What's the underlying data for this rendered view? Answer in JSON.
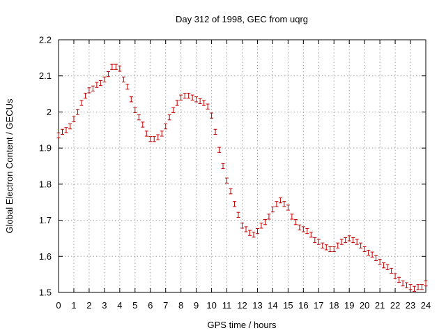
{
  "chart_data": {
    "type": "scatter",
    "title": "Day 312 of 1998, GEC from uqrg",
    "xlabel": "GPS time / hours",
    "ylabel": "Global Electron Content / GECUs",
    "xlim": [
      0,
      24
    ],
    "ylim": [
      1.5,
      2.2
    ],
    "xticks": [
      "0",
      "1",
      "2",
      "3",
      "4",
      "5",
      "6",
      "7",
      "8",
      "9",
      "10",
      "11",
      "12",
      "13",
      "14",
      "15",
      "16",
      "17",
      "18",
      "19",
      "20",
      "21",
      "22",
      "23",
      "24"
    ],
    "yticks": [
      "1.5",
      "1.6",
      "1.7",
      "1.8",
      "1.9",
      "2",
      "2.1",
      "2.2"
    ],
    "grid": true,
    "legend": "none",
    "series": [
      {
        "color": "#c00000",
        "error": 0.007,
        "x": [
          0,
          0.25,
          0.5,
          0.75,
          1,
          1.25,
          1.5,
          1.75,
          2,
          2.25,
          2.5,
          2.75,
          3,
          3.25,
          3.5,
          3.75,
          4,
          4.25,
          4.5,
          4.75,
          5,
          5.25,
          5.5,
          5.75,
          6,
          6.25,
          6.5,
          6.75,
          7,
          7.25,
          7.5,
          7.75,
          8,
          8.25,
          8.5,
          8.75,
          9,
          9.25,
          9.5,
          9.75,
          10,
          10.25,
          10.5,
          10.75,
          11,
          11.25,
          11.5,
          11.75,
          12,
          12.25,
          12.5,
          12.75,
          13,
          13.25,
          13.5,
          13.75,
          14,
          14.25,
          14.5,
          14.75,
          15,
          15.25,
          15.5,
          15.75,
          16,
          16.25,
          16.5,
          16.75,
          17,
          17.25,
          17.5,
          17.75,
          18,
          18.25,
          18.5,
          18.75,
          19,
          19.25,
          19.5,
          19.75,
          20,
          20.25,
          20.5,
          20.75,
          21,
          21.25,
          21.5,
          21.75,
          22,
          22.25,
          22.5,
          22.75,
          23,
          23.25,
          23.5,
          23.75,
          24
        ],
        "y": [
          1.935,
          1.945,
          1.95,
          1.96,
          1.98,
          2.0,
          2.025,
          2.045,
          2.06,
          2.065,
          2.075,
          2.08,
          2.09,
          2.105,
          2.125,
          2.125,
          2.12,
          2.09,
          2.07,
          2.035,
          2.005,
          1.985,
          1.965,
          1.94,
          1.925,
          1.925,
          1.93,
          1.94,
          1.96,
          1.985,
          2.005,
          2.025,
          2.04,
          2.045,
          2.045,
          2.04,
          2.035,
          2.03,
          2.025,
          2.015,
          1.99,
          1.945,
          1.895,
          1.85,
          1.81,
          1.78,
          1.745,
          1.715,
          1.685,
          1.675,
          1.665,
          1.66,
          1.67,
          1.685,
          1.695,
          1.71,
          1.73,
          1.745,
          1.755,
          1.745,
          1.735,
          1.71,
          1.695,
          1.68,
          1.675,
          1.67,
          1.66,
          1.645,
          1.64,
          1.63,
          1.625,
          1.62,
          1.62,
          1.63,
          1.64,
          1.645,
          1.65,
          1.645,
          1.64,
          1.63,
          1.62,
          1.61,
          1.605,
          1.595,
          1.585,
          1.575,
          1.57,
          1.56,
          1.545,
          1.535,
          1.525,
          1.52,
          1.515,
          1.51,
          1.515,
          1.515,
          1.525
        ]
      }
    ]
  }
}
